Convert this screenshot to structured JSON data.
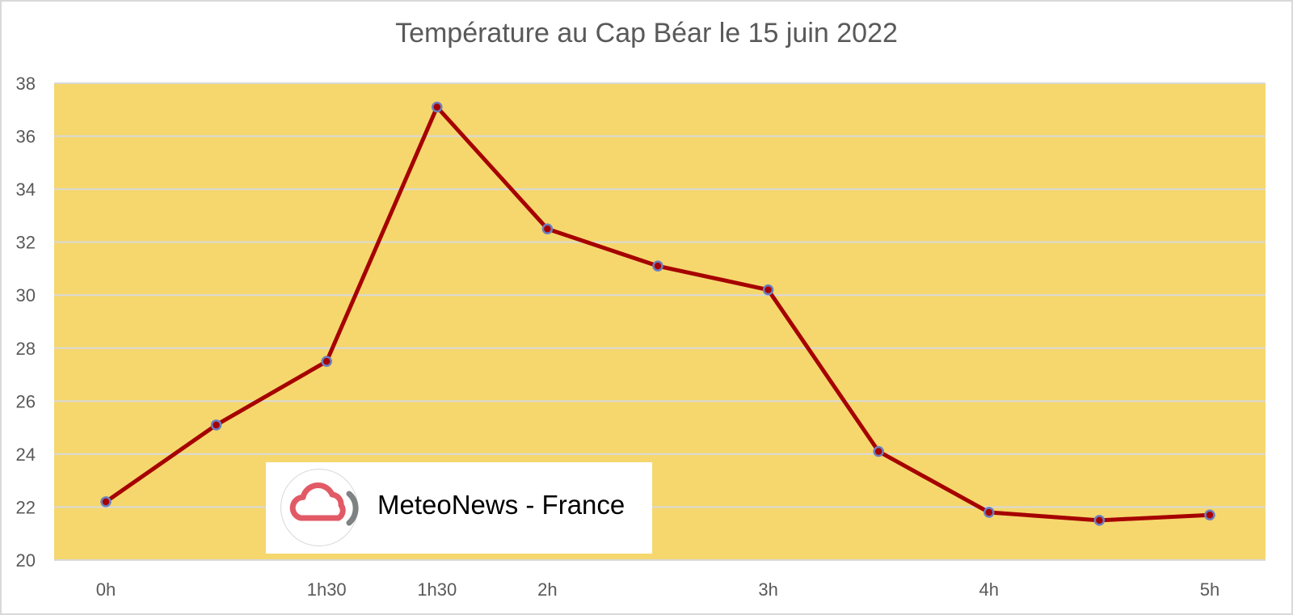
{
  "chart_data": {
    "type": "line",
    "title": "Température au Cap Béar le 15 juin 2022",
    "xlabel": "",
    "ylabel": "",
    "ylim": [
      20,
      38
    ],
    "yticks": [
      "20",
      "22",
      "24",
      "26",
      "28",
      "30",
      "32",
      "34",
      "36",
      "38"
    ],
    "grid": true,
    "x_labels": [
      "0h",
      "",
      "1h30",
      "1h30",
      "2h",
      "",
      "3h",
      "",
      "4h",
      "",
      "5h"
    ],
    "series": [
      {
        "values": [
          22.2,
          25.1,
          27.5,
          37.1,
          32.5,
          31.1,
          30.2,
          24.1,
          21.8,
          21.5,
          21.7
        ]
      }
    ],
    "colors": {
      "plot_background": "#F5D76E",
      "line": "#A60000",
      "marker_fill": "#A60000",
      "marker_edge": "#6C7FC0",
      "gridline": "#D9D9D9",
      "axis_text": "#595959"
    }
  },
  "watermark": {
    "text": "MeteoNews - France",
    "icon": "cloud-logo-icon"
  }
}
